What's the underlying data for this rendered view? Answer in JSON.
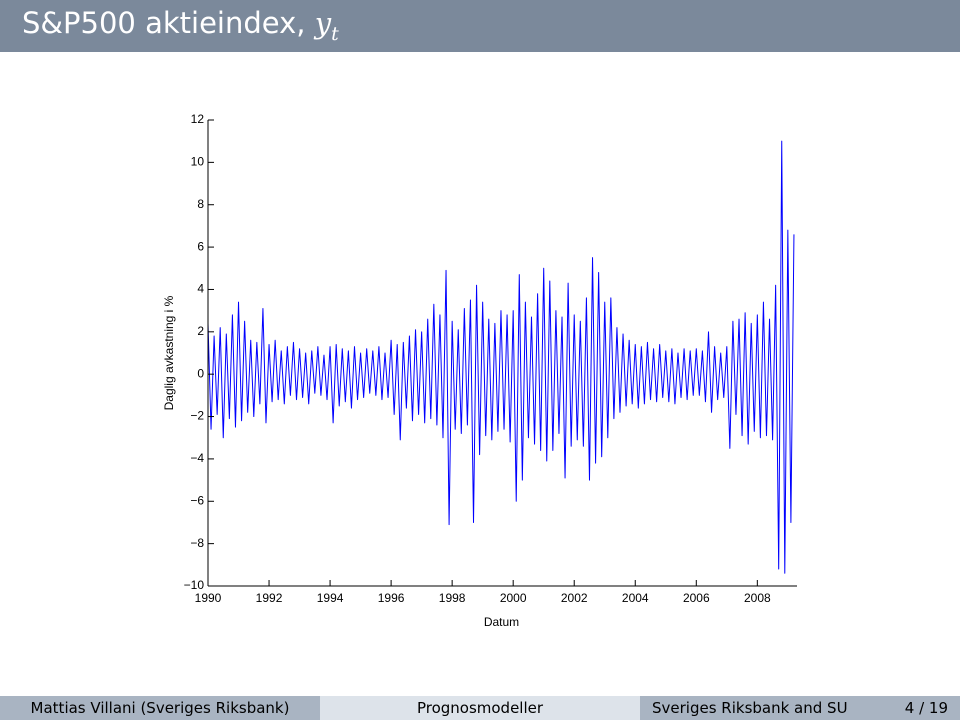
{
  "slide": {
    "title_text": "S&P500 aktieindex,",
    "title_symbol": "y",
    "title_subscript": "t",
    "footer": {
      "author": "Mattias Villani (Sveriges Riksbank)",
      "course": "Prognosmodeller",
      "institution": "Sveriges Riksbank and SU",
      "page": "4 / 19"
    }
  },
  "chart_data": {
    "type": "line",
    "xlabel": "Datum",
    "ylabel": "Daglig avkastning i %",
    "color": "#0000ff",
    "xlim": [
      1990,
      2009.3
    ],
    "xticks": [
      1990,
      1992,
      1994,
      1996,
      1998,
      2000,
      2002,
      2004,
      2006,
      2008
    ],
    "ylim": [
      -10,
      12
    ],
    "yticks": [
      {
        "value": -10,
        "label": "−10"
      },
      {
        "value": -8,
        "label": "−8"
      },
      {
        "value": -6,
        "label": "−6"
      },
      {
        "value": -4,
        "label": "−4"
      },
      {
        "value": -2,
        "label": "−2"
      },
      0,
      2,
      4,
      6,
      8,
      10,
      12
    ],
    "x": [
      1990.0,
      1990.1,
      1990.2,
      1990.3,
      1990.4,
      1990.5,
      1990.6,
      1990.7,
      1990.8,
      1990.9,
      1991.0,
      1991.1,
      1991.2,
      1991.3,
      1991.4,
      1991.5,
      1991.6,
      1991.7,
      1991.8,
      1991.9,
      1992.0,
      1992.1,
      1992.2,
      1992.3,
      1992.4,
      1992.5,
      1992.6,
      1992.7,
      1992.8,
      1992.9,
      1993.0,
      1993.1,
      1993.2,
      1993.3,
      1993.4,
      1993.5,
      1993.6,
      1993.7,
      1993.8,
      1993.9,
      1994.0,
      1994.1,
      1994.2,
      1994.3,
      1994.4,
      1994.5,
      1994.6,
      1994.7,
      1994.8,
      1994.9,
      1995.0,
      1995.1,
      1995.2,
      1995.3,
      1995.4,
      1995.5,
      1995.6,
      1995.7,
      1995.8,
      1995.9,
      1996.0,
      1996.1,
      1996.2,
      1996.3,
      1996.4,
      1996.5,
      1996.6,
      1996.7,
      1996.8,
      1996.9,
      1997.0,
      1997.1,
      1997.2,
      1997.3,
      1997.4,
      1997.5,
      1997.6,
      1997.7,
      1997.8,
      1997.9,
      1998.0,
      1998.1,
      1998.2,
      1998.3,
      1998.4,
      1998.5,
      1998.6,
      1998.7,
      1998.8,
      1998.9,
      1999.0,
      1999.1,
      1999.2,
      1999.3,
      1999.4,
      1999.5,
      1999.6,
      1999.7,
      1999.8,
      1999.9,
      2000.0,
      2000.1,
      2000.2,
      2000.3,
      2000.4,
      2000.5,
      2000.6,
      2000.7,
      2000.8,
      2000.9,
      2001.0,
      2001.1,
      2001.2,
      2001.3,
      2001.4,
      2001.5,
      2001.6,
      2001.7,
      2001.8,
      2001.9,
      2002.0,
      2002.1,
      2002.2,
      2002.3,
      2002.4,
      2002.5,
      2002.6,
      2002.7,
      2002.8,
      2002.9,
      2003.0,
      2003.1,
      2003.2,
      2003.3,
      2003.4,
      2003.5,
      2003.6,
      2003.7,
      2003.8,
      2003.9,
      2004.0,
      2004.1,
      2004.2,
      2004.3,
      2004.4,
      2004.5,
      2004.6,
      2004.7,
      2004.8,
      2004.9,
      2005.0,
      2005.1,
      2005.2,
      2005.3,
      2005.4,
      2005.5,
      2005.6,
      2005.7,
      2005.8,
      2005.9,
      2006.0,
      2006.1,
      2006.2,
      2006.3,
      2006.4,
      2006.5,
      2006.6,
      2006.7,
      2006.8,
      2006.9,
      2007.0,
      2007.1,
      2007.2,
      2007.3,
      2007.4,
      2007.5,
      2007.6,
      2007.7,
      2007.8,
      2007.9,
      2008.0,
      2008.1,
      2008.2,
      2008.3,
      2008.4,
      2008.5,
      2008.6,
      2008.7,
      2008.8,
      2008.9,
      2009.0,
      2009.1,
      2009.2
    ],
    "values": [
      2.4,
      -2.6,
      1.8,
      -1.9,
      2.2,
      -3.0,
      1.9,
      -2.1,
      2.8,
      -2.5,
      3.4,
      -2.2,
      2.5,
      -1.8,
      1.6,
      -2.0,
      1.5,
      -1.4,
      3.1,
      -2.3,
      1.4,
      -1.3,
      1.6,
      -1.2,
      1.1,
      -1.4,
      1.3,
      -1.0,
      1.5,
      -1.2,
      1.2,
      -1.1,
      1.0,
      -1.4,
      1.1,
      -0.9,
      1.3,
      -1.0,
      0.9,
      -1.2,
      1.3,
      -2.3,
      1.4,
      -1.5,
      1.2,
      -1.3,
      1.1,
      -1.6,
      1.3,
      -1.2,
      1.0,
      -1.1,
      1.2,
      -0.9,
      1.1,
      -1.0,
      1.3,
      -1.2,
      1.0,
      -1.1,
      1.6,
      -1.9,
      1.4,
      -3.1,
      1.5,
      -1.6,
      1.8,
      -2.2,
      2.1,
      -1.9,
      2.0,
      -2.3,
      2.6,
      -2.1,
      3.3,
      -2.4,
      2.8,
      -3.0,
      4.9,
      -7.1,
      2.5,
      -2.6,
      2.1,
      -2.8,
      3.1,
      -2.4,
      3.5,
      -7.0,
      4.2,
      -3.8,
      3.4,
      -2.9,
      2.6,
      -3.1,
      2.4,
      -2.7,
      3.0,
      -2.6,
      2.8,
      -3.2,
      3.0,
      -6.0,
      4.7,
      -5.0,
      3.4,
      -3.0,
      2.7,
      -3.3,
      3.8,
      -3.6,
      5.0,
      -4.1,
      4.4,
      -3.6,
      3.0,
      -2.8,
      2.7,
      -4.9,
      4.3,
      -3.4,
      2.8,
      -3.1,
      2.5,
      -3.4,
      3.6,
      -5.0,
      5.5,
      -4.2,
      4.8,
      -3.9,
      3.4,
      -3.0,
      3.6,
      -2.1,
      2.2,
      -1.8,
      1.9,
      -1.5,
      1.6,
      -1.4,
      1.4,
      -1.6,
      1.3,
      -1.4,
      1.5,
      -1.2,
      1.2,
      -1.3,
      1.4,
      -1.1,
      1.1,
      -1.3,
      1.2,
      -1.4,
      1.0,
      -1.1,
      1.2,
      -1.2,
      1.1,
      -1.0,
      1.2,
      -1.0,
      1.1,
      -1.3,
      2.0,
      -1.8,
      1.3,
      -1.2,
      1.0,
      -1.1,
      1.3,
      -3.5,
      2.5,
      -1.9,
      2.6,
      -2.9,
      2.9,
      -3.3,
      2.4,
      -2.7,
      2.8,
      -3.0,
      3.4,
      -2.9,
      2.6,
      -3.1,
      4.2,
      -9.2,
      11.0,
      -9.4,
      6.8,
      -7.0,
      6.6
    ]
  }
}
